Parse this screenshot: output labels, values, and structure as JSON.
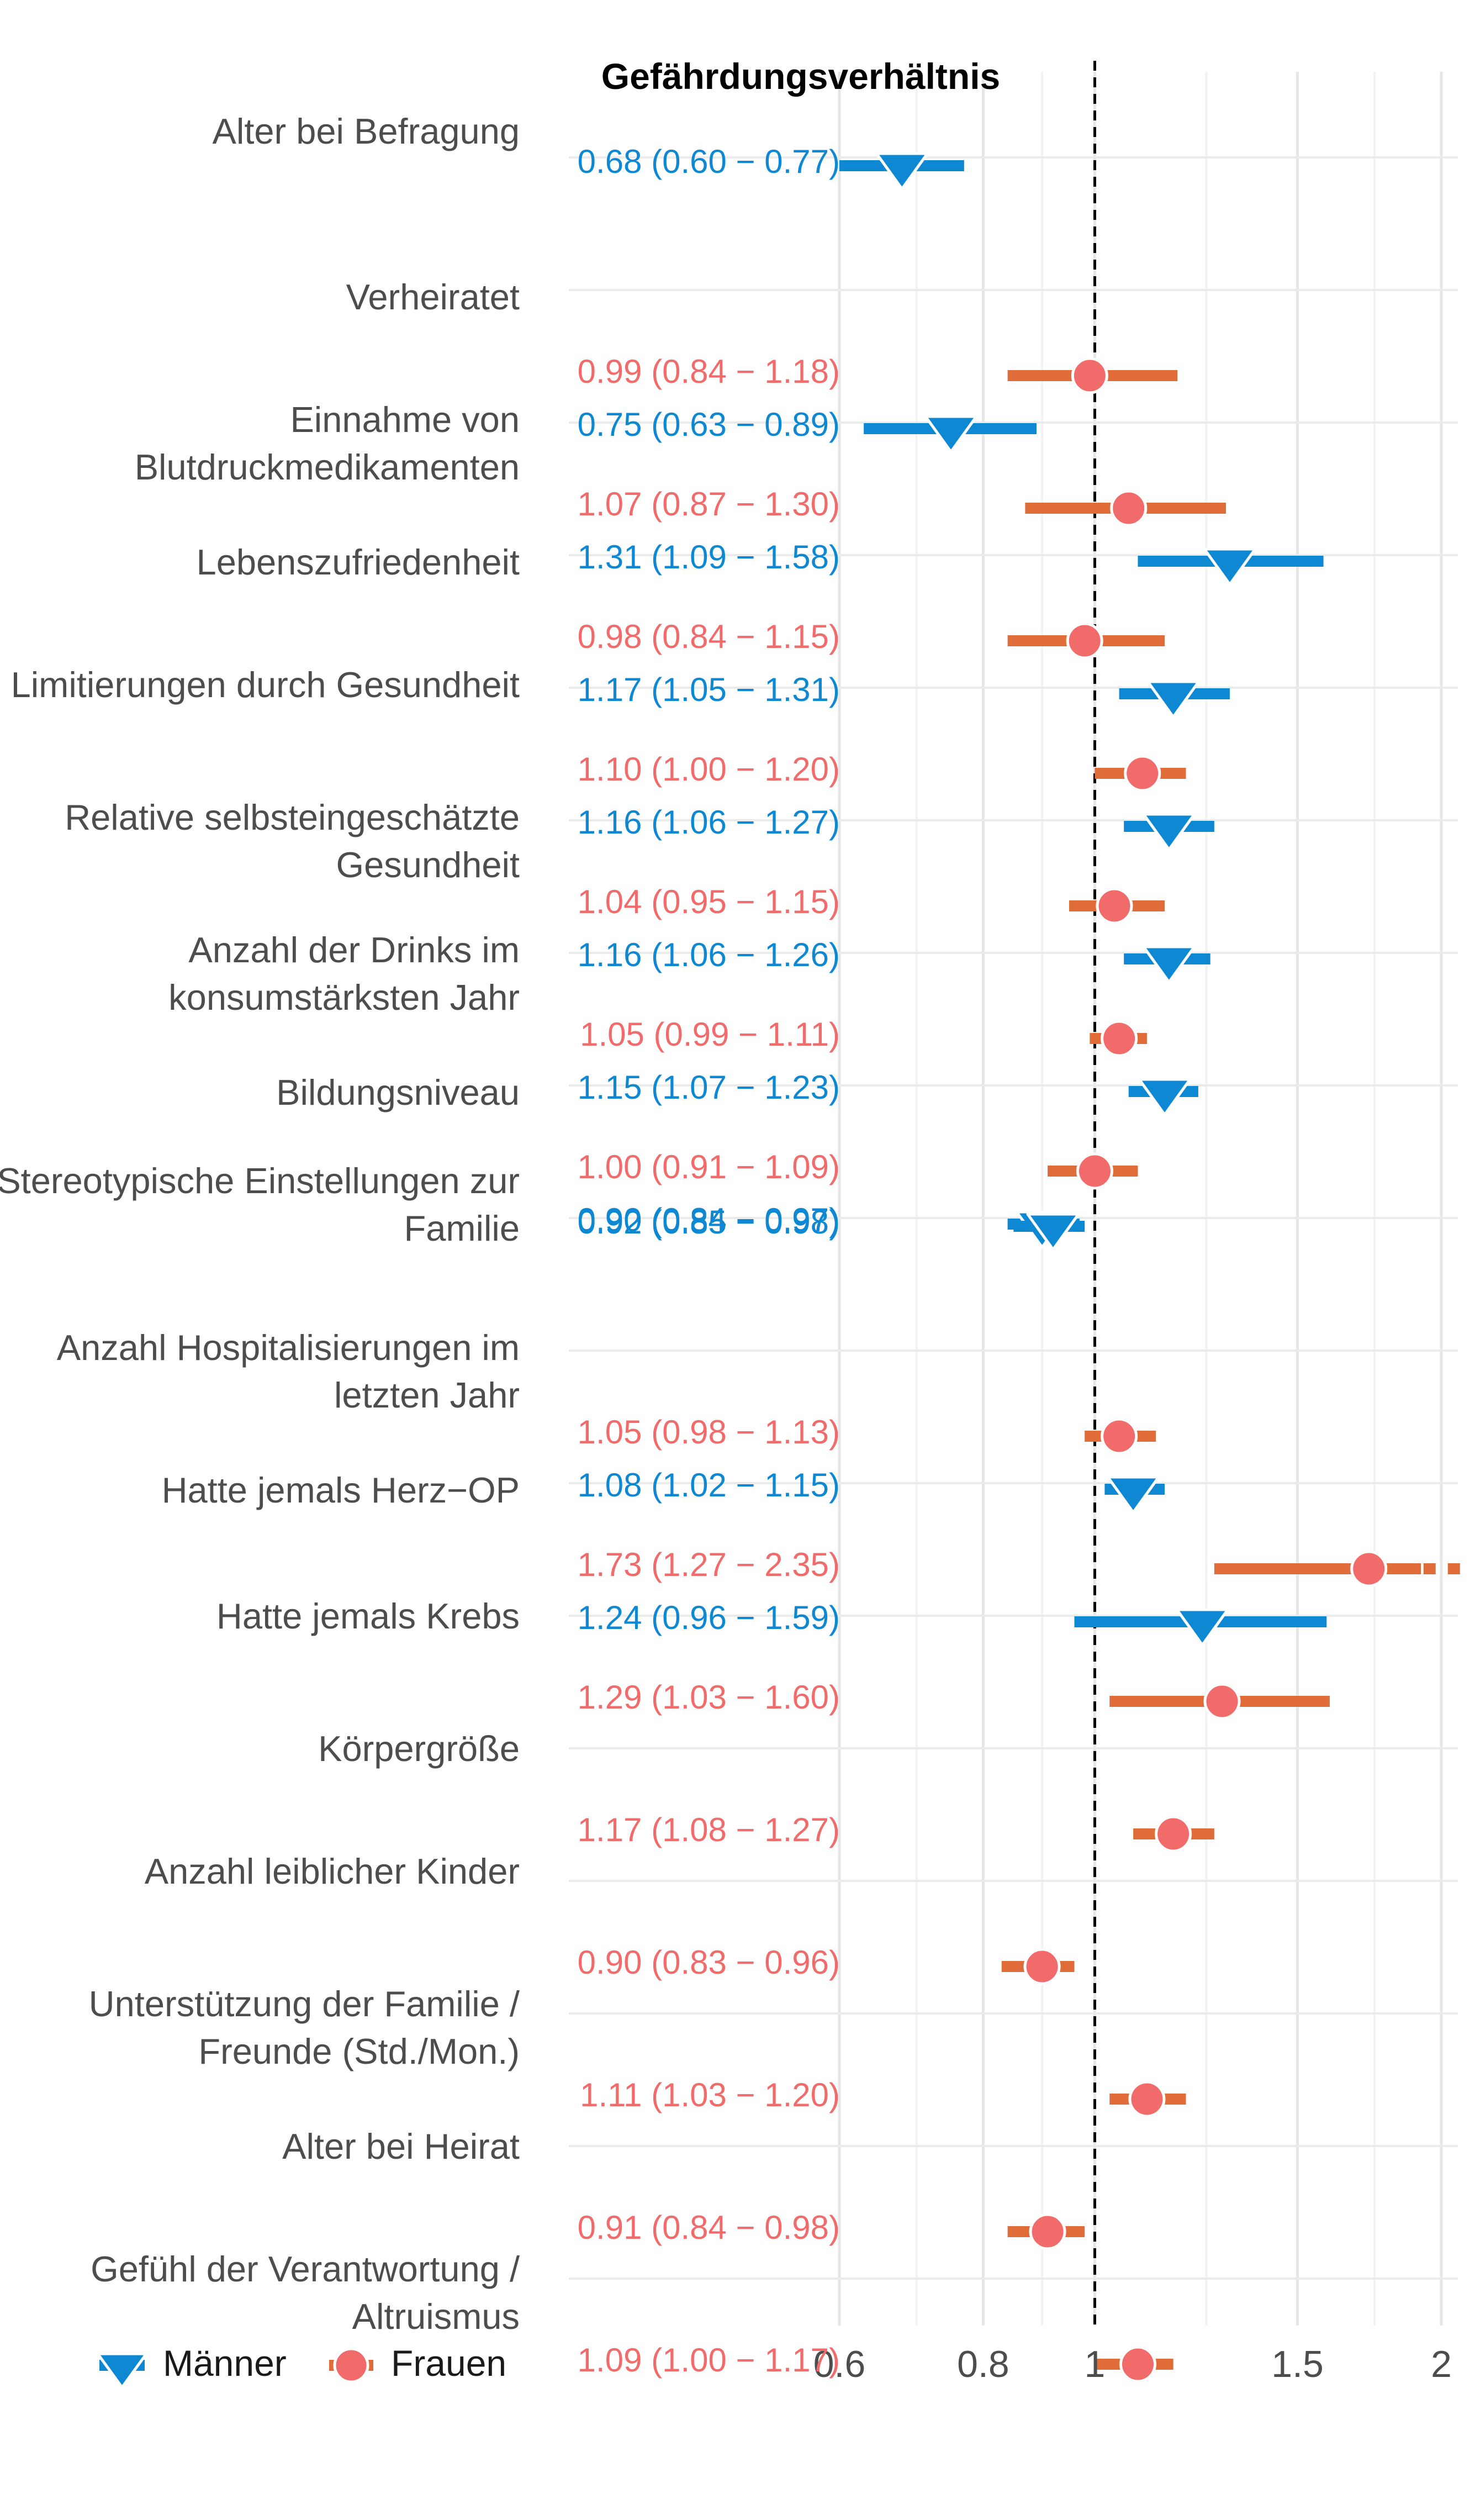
{
  "chart_data": {
    "type": "forest",
    "title": "Gefährdungsverhältnis",
    "x_ticks": [
      "0.6",
      "0.8",
      "1",
      "1.5",
      "2"
    ],
    "x_tick_values": [
      0.6,
      0.8,
      1.0,
      1.5,
      2.0
    ],
    "xlim": [
      0.6,
      2.05
    ],
    "x_scale": "log",
    "reference_line": 1.0,
    "grid": true,
    "legend_position": "bottom-left",
    "series": [
      {
        "name": "Männer",
        "color": "#0e88d3",
        "marker": "triangle-down"
      },
      {
        "name": "Frauen",
        "color": "#e06c39",
        "marker_color": "#f26b6b",
        "marker": "circle"
      }
    ],
    "rows": [
      {
        "label": "Alter bei Befragung",
        "men": {
          "hr": 0.68,
          "lo": 0.6,
          "hi": 0.77,
          "text": "0.68 (0.60 − 0.77)"
        }
      },
      {
        "label": "Verheiratet",
        "women": {
          "hr": 0.99,
          "lo": 0.84,
          "hi": 1.18,
          "text": "0.99 (0.84 − 1.18)"
        },
        "men": {
          "hr": 0.75,
          "lo": 0.63,
          "hi": 0.89,
          "text": "0.75 (0.63 − 0.89)"
        }
      },
      {
        "label": "Einnahme  von Blutdruckmedikamenten",
        "women": {
          "hr": 1.07,
          "lo": 0.87,
          "hi": 1.3,
          "text": "1.07 (0.87 − 1.30)"
        },
        "men": {
          "hr": 1.31,
          "lo": 1.09,
          "hi": 1.58,
          "text": "1.31 (1.09 − 1.58)"
        }
      },
      {
        "label": "Lebenszufriedenheit",
        "women": {
          "hr": 0.98,
          "lo": 0.84,
          "hi": 1.15,
          "text": "0.98 (0.84 − 1.15)"
        },
        "men": {
          "hr": 1.17,
          "lo": 1.05,
          "hi": 1.31,
          "text": "1.17 (1.05 − 1.31)"
        }
      },
      {
        "label": "Limitierungen durch Gesundheit",
        "women": {
          "hr": 1.1,
          "lo": 1.0,
          "hi": 1.2,
          "text": "1.10 (1.00 − 1.20)"
        },
        "men": {
          "hr": 1.16,
          "lo": 1.06,
          "hi": 1.27,
          "text": "1.16 (1.06 − 1.27)"
        }
      },
      {
        "label": "Relative selbsteingeschätzte Gesundheit",
        "women": {
          "hr": 1.04,
          "lo": 0.95,
          "hi": 1.15,
          "text": "1.04 (0.95 − 1.15)"
        },
        "men": {
          "hr": 1.16,
          "lo": 1.06,
          "hi": 1.26,
          "text": "1.16 (1.06 − 1.26)"
        }
      },
      {
        "label": "Anzahl der Drinks im konsumstärksten Jahr",
        "women": {
          "hr": 1.05,
          "lo": 0.99,
          "hi": 1.11,
          "text": "1.05 (0.99 − 1.11)"
        },
        "men": {
          "hr": 1.15,
          "lo": 1.07,
          "hi": 1.23,
          "text": "1.15 (1.07 − 1.23)"
        }
      },
      {
        "label": "Bildungsniveau",
        "women": {
          "hr": 1.0,
          "lo": 0.91,
          "hi": 1.09,
          "text": "1.00 (0.91 − 1.09)"
        },
        "men": {
          "hr": 0.9,
          "lo": 0.84,
          "hi": 0.97,
          "text": "0.90 (0.84 − 0.97)"
        }
      },
      {
        "label": "Stereotypische Einstellungen zur Familie",
        "men": {
          "hr": 0.92,
          "lo": 0.85,
          "hi": 0.98,
          "text": "0.92 (0.85 − 0.98)"
        }
      },
      {
        "label": "Anzahl Hospitalisierungen im letzten Jahr",
        "women": {
          "hr": 1.05,
          "lo": 0.98,
          "hi": 1.13,
          "text": "1.05 (0.98 − 1.13)"
        },
        "men": {
          "hr": 1.08,
          "lo": 1.02,
          "hi": 1.15,
          "text": "1.08 (1.02 − 1.15)"
        }
      },
      {
        "label": "Hatte jemals  Herz−OP",
        "women": {
          "hr": 1.73,
          "lo": 1.27,
          "hi": 2.35,
          "text": "1.73 (1.27 − 2.35)",
          "truncated": true
        },
        "men": {
          "hr": 1.24,
          "lo": 0.96,
          "hi": 1.59,
          "text": "1.24 (0.96 − 1.59)"
        }
      },
      {
        "label": "Hatte jemals  Krebs",
        "women": {
          "hr": 1.29,
          "lo": 1.03,
          "hi": 1.6,
          "text": "1.29 (1.03 − 1.60)"
        }
      },
      {
        "label": "Körpergröße",
        "women": {
          "hr": 1.17,
          "lo": 1.08,
          "hi": 1.27,
          "text": "1.17 (1.08 − 1.27)"
        }
      },
      {
        "label": "Anzahl leiblicher Kinder",
        "women": {
          "hr": 0.9,
          "lo": 0.83,
          "hi": 0.96,
          "text": "0.90 (0.83 − 0.96)"
        }
      },
      {
        "label": "Unterstützung der Familie  / Freunde  (Std./Mon.)",
        "women": {
          "hr": 1.11,
          "lo": 1.03,
          "hi": 1.2,
          "text": "1.11 (1.03 − 1.20)"
        }
      },
      {
        "label": "Alter bei Heirat",
        "women": {
          "hr": 0.91,
          "lo": 0.84,
          "hi": 0.98,
          "text": "0.91 (0.84 − 0.98)"
        }
      },
      {
        "label": "Gefühl der Verantwortung  / Altruismus",
        "women": {
          "hr": 1.09,
          "lo": 1.0,
          "hi": 1.17,
          "text": "1.09 (1.00 − 1.17)"
        }
      }
    ]
  }
}
